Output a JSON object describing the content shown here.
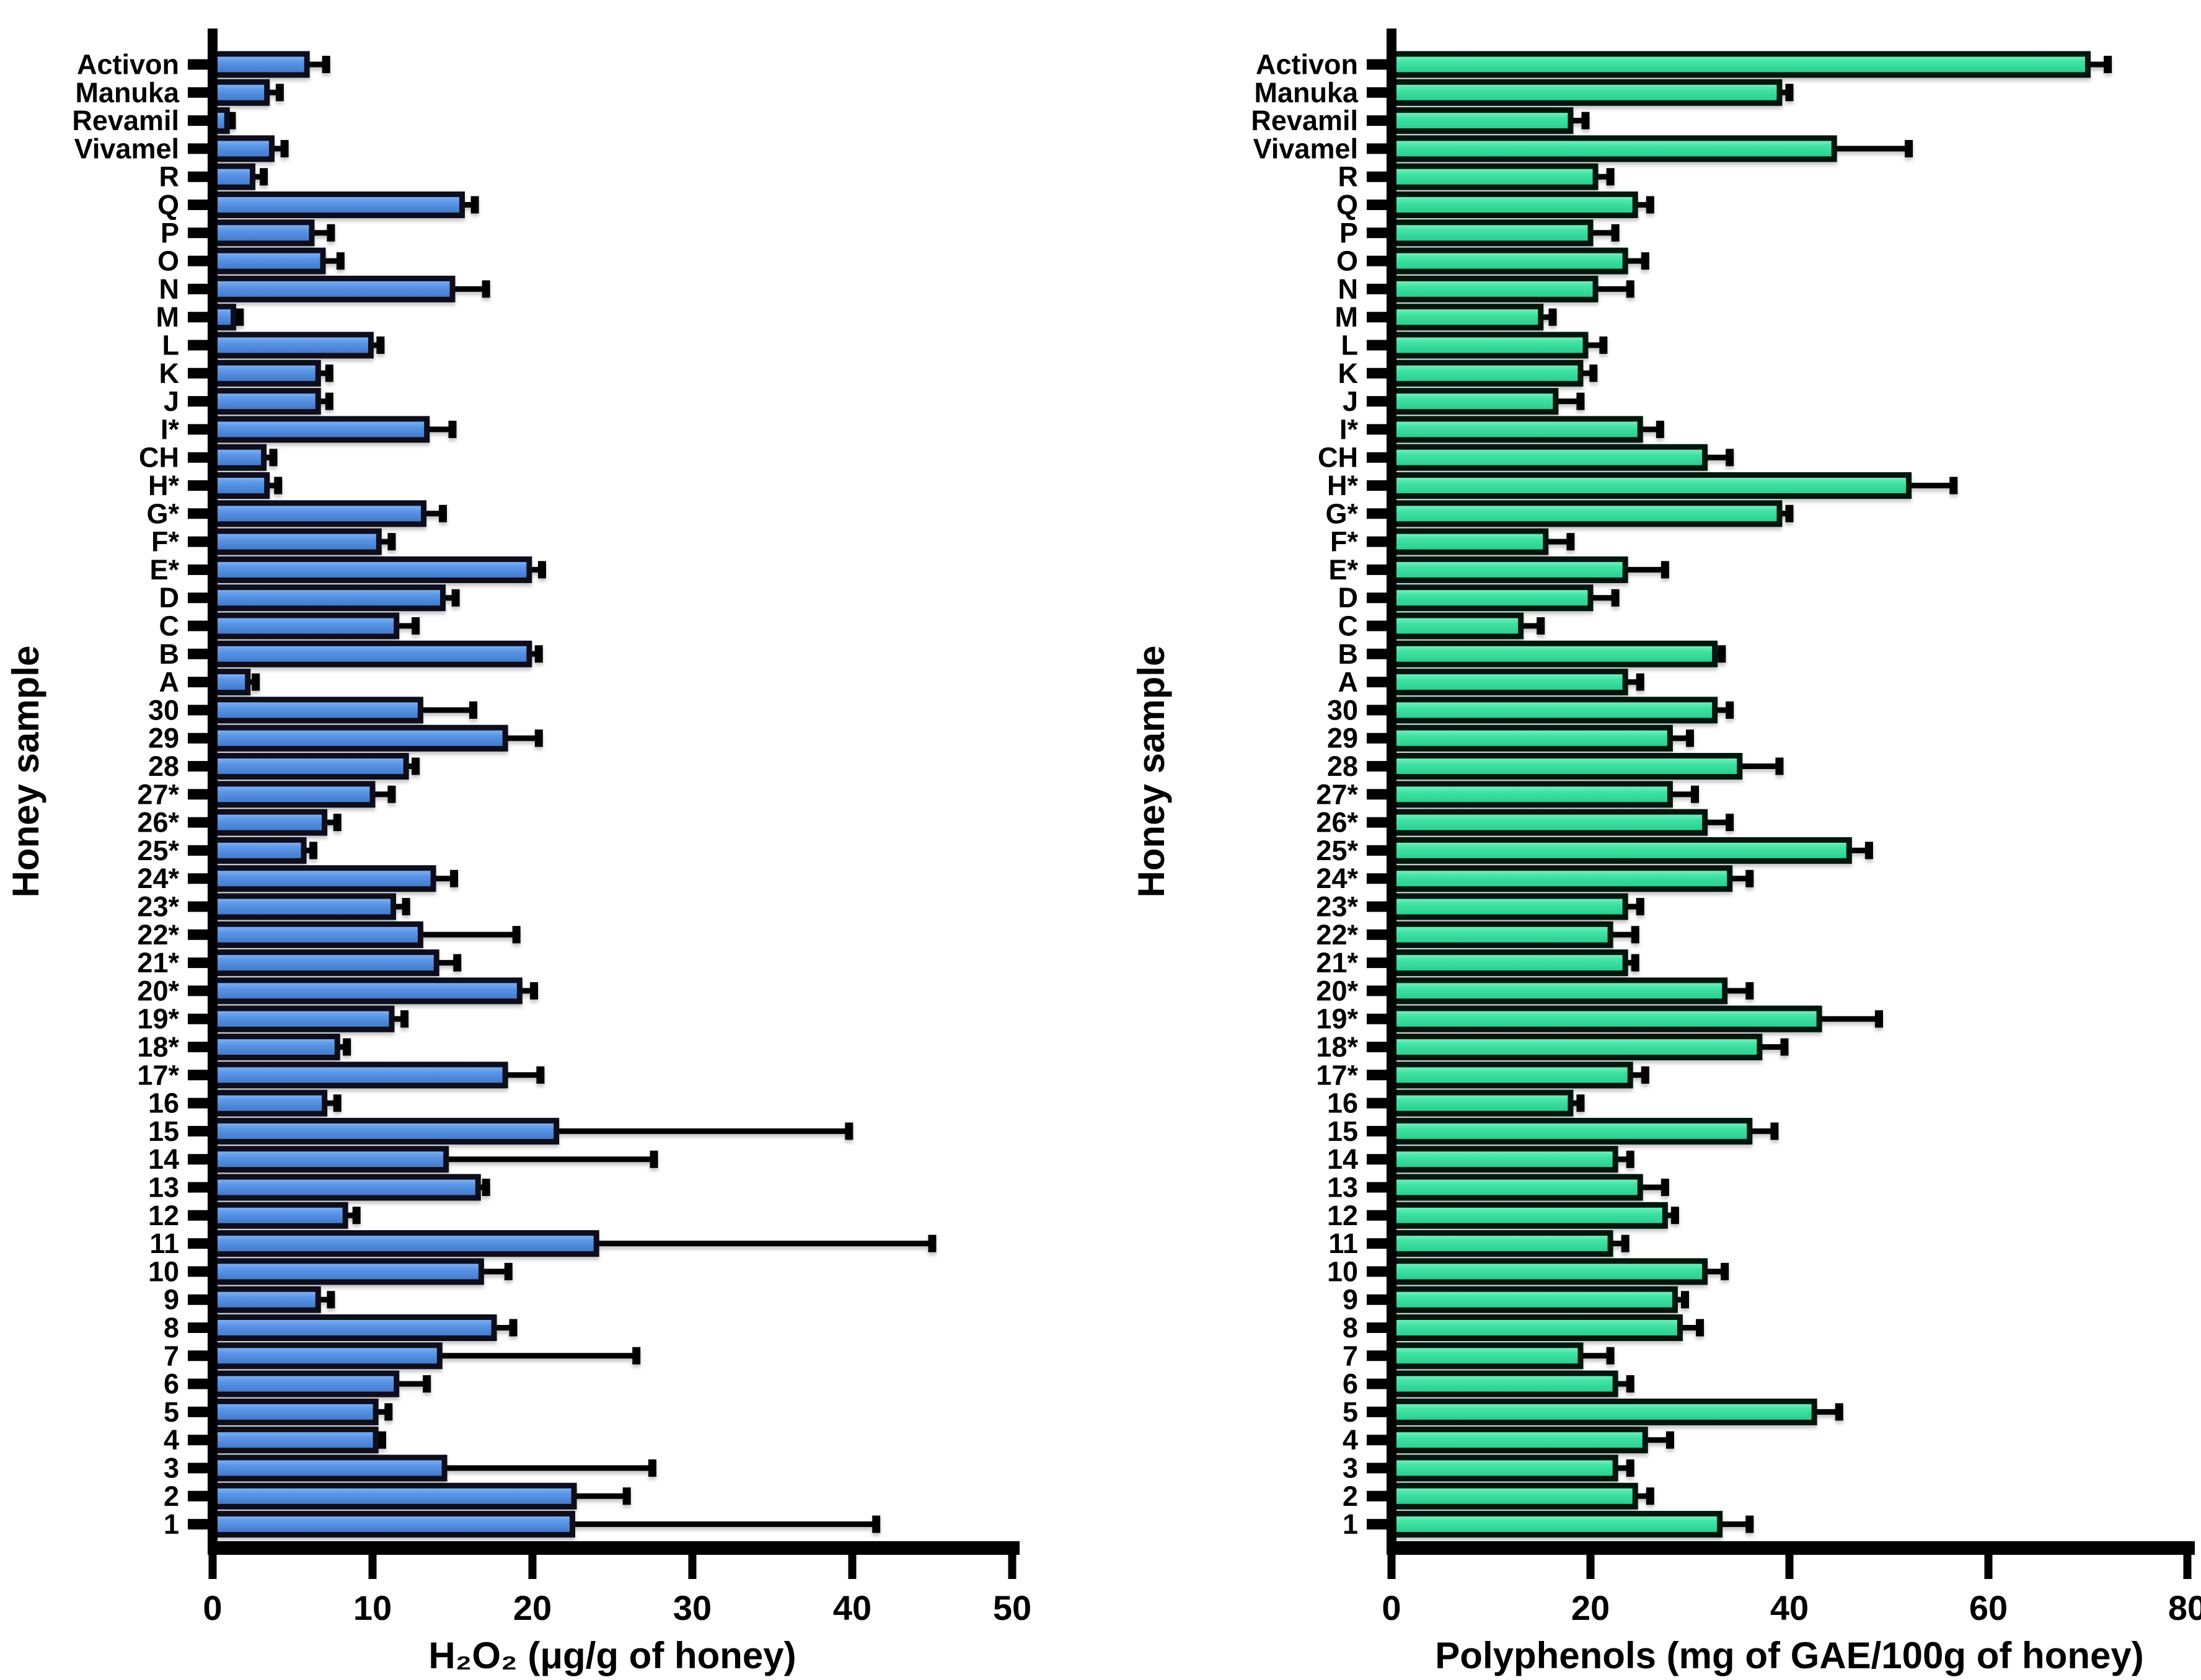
{
  "page": {
    "background": "#FFFFFF"
  },
  "chart_data": [
    {
      "type": "bar",
      "orientation": "horizontal",
      "title": "",
      "xlabel": "H₂O₂ (μg/g of honey)",
      "ylabel": "Honey sample",
      "xlim": [
        0,
        50
      ],
      "xticks": [
        0,
        10,
        20,
        30,
        40,
        50
      ],
      "grid": false,
      "legend": "none",
      "bar_fill": "#5B96E8",
      "bar_fill_light": "#8FBCF4",
      "bar_fill_dark": "#3D74C4",
      "bar_border": "#0A0F1E",
      "error_color": "#000000",
      "categories_top_to_bottom": [
        "Activon",
        "Manuka",
        "Revamil",
        "Vivamel",
        "R",
        "Q",
        "P",
        "O",
        "N",
        "M",
        "L",
        "K",
        "J",
        "I*",
        "CH",
        "H*",
        "G*",
        "F*",
        "E*",
        "D",
        "C",
        "B",
        "A",
        "30",
        "29",
        "28",
        "27*",
        "26*",
        "25*",
        "24*",
        "23*",
        "22*",
        "21*",
        "20*",
        "19*",
        "18*",
        "17*",
        "16",
        "15",
        "14",
        "13",
        "12",
        "11",
        "10",
        "9",
        "8",
        "7",
        "6",
        "5",
        "4",
        "3",
        "2",
        "1"
      ],
      "values": [
        5.9,
        3.4,
        0.9,
        3.7,
        2.5,
        15.6,
        6.2,
        6.9,
        15.0,
        1.3,
        9.9,
        6.6,
        6.6,
        13.4,
        3.2,
        3.4,
        13.2,
        10.4,
        19.8,
        14.4,
        11.5,
        19.8,
        2.2,
        13.0,
        18.3,
        12.1,
        10.0,
        7.0,
        5.7,
        13.8,
        11.3,
        13.0,
        14.0,
        19.2,
        11.2,
        7.8,
        18.3,
        7.0,
        21.5,
        14.6,
        16.6,
        8.3,
        24.0,
        16.8,
        6.6,
        17.6,
        14.2,
        11.5,
        10.2,
        10.2,
        14.5,
        22.6,
        22.5
      ],
      "error_high": [
        7.1,
        4.2,
        1.2,
        4.5,
        3.2,
        16.4,
        7.4,
        8.0,
        17.1,
        1.7,
        10.5,
        7.3,
        7.3,
        15.0,
        3.8,
        4.1,
        14.4,
        11.2,
        20.6,
        15.2,
        12.7,
        20.4,
        2.7,
        16.3,
        20.4,
        12.7,
        11.2,
        7.8,
        6.3,
        15.1,
        12.1,
        19.0,
        15.3,
        20.1,
        12.0,
        8.4,
        20.5,
        7.8,
        39.8,
        27.6,
        17.1,
        9.0,
        45.0,
        18.5,
        7.4,
        18.8,
        26.5,
        13.4,
        11.0,
        10.6,
        27.5,
        25.9,
        41.5
      ]
    },
    {
      "type": "bar",
      "orientation": "horizontal",
      "title": "",
      "xlabel": "Polyphenols (mg of GAE/100g of honey)",
      "ylabel": "Honey sample",
      "xlim": [
        0,
        80
      ],
      "xticks": [
        0,
        20,
        40,
        60,
        80
      ],
      "grid": false,
      "legend": "none",
      "bar_fill": "#41E3A3",
      "bar_fill_light": "#8FF2CC",
      "bar_fill_dark": "#24C98A",
      "bar_border": "#05140D",
      "error_color": "#000000",
      "categories_top_to_bottom": [
        "Activon",
        "Manuka",
        "Revamil",
        "Vivamel",
        "R",
        "Q",
        "P",
        "O",
        "N",
        "M",
        "L",
        "K",
        "J",
        "I*",
        "CH",
        "H*",
        "G*",
        "F*",
        "E*",
        "D",
        "C",
        "B",
        "A",
        "30",
        "29",
        "28",
        "27*",
        "26*",
        "25*",
        "24*",
        "23*",
        "22*",
        "21*",
        "20*",
        "19*",
        "18*",
        "17*",
        "16",
        "15",
        "14",
        "13",
        "12",
        "11",
        "10",
        "9",
        "8",
        "7",
        "6",
        "5",
        "4",
        "3",
        "2",
        "1"
      ],
      "values": [
        70.0,
        39.0,
        18.0,
        44.5,
        20.5,
        24.5,
        20.0,
        23.5,
        20.5,
        15.0,
        19.5,
        19.0,
        16.5,
        25.0,
        31.5,
        52.0,
        39.0,
        15.5,
        23.5,
        20.0,
        13.0,
        32.5,
        23.5,
        32.5,
        28.0,
        35.0,
        28.0,
        31.5,
        46.0,
        34.0,
        23.5,
        22.0,
        23.5,
        33.5,
        43.0,
        37.0,
        24.0,
        18.0,
        36.0,
        22.5,
        25.0,
        27.5,
        22.0,
        31.5,
        28.5,
        29.0,
        19.0,
        22.5,
        42.5,
        25.5,
        22.5,
        24.5,
        33.0
      ],
      "error_high": [
        72.0,
        40.0,
        19.5,
        52.0,
        22.0,
        26.0,
        22.5,
        25.5,
        24.0,
        16.2,
        21.3,
        20.3,
        19.0,
        27.0,
        34.0,
        56.5,
        40.0,
        18.0,
        27.5,
        22.5,
        15.0,
        33.2,
        25.0,
        34.0,
        30.0,
        39.0,
        30.5,
        34.0,
        48.0,
        36.0,
        25.0,
        24.5,
        24.5,
        36.0,
        49.0,
        39.5,
        25.5,
        19.0,
        38.5,
        24.0,
        27.5,
        28.5,
        23.5,
        33.5,
        29.5,
        31.0,
        22.0,
        24.0,
        45.0,
        28.0,
        24.0,
        26.0,
        36.0
      ]
    }
  ]
}
